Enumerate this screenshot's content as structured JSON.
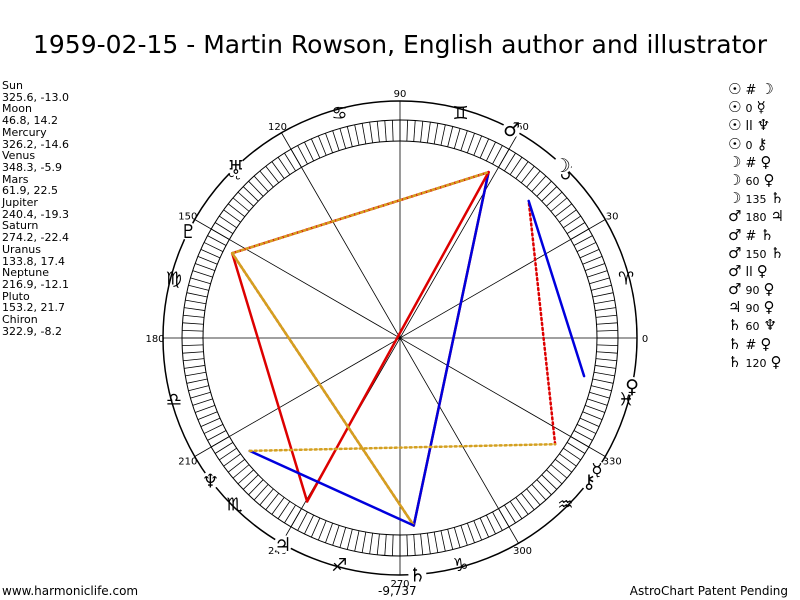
{
  "title": "1959-02-15 - Martin Rowson, English author and illustrator",
  "planets": [
    {
      "name": "Sun",
      "coords": "325.6, -13.0",
      "lon": 325.6,
      "glyph": "☉"
    },
    {
      "name": "Moon",
      "coords": "46.8, 14.2",
      "lon": 46.8,
      "glyph": "☽"
    },
    {
      "name": "Mercury",
      "coords": "326.2, -14.6",
      "lon": 326.2,
      "glyph": "☿"
    },
    {
      "name": "Venus",
      "coords": "348.3, -5.9",
      "lon": 348.3,
      "glyph": "♀"
    },
    {
      "name": "Mars",
      "coords": "61.9, 22.5",
      "lon": 61.9,
      "glyph": "♂"
    },
    {
      "name": "Jupiter",
      "coords": "240.4, -19.3",
      "lon": 240.4,
      "glyph": "♃"
    },
    {
      "name": "Saturn",
      "coords": "274.2, -22.4",
      "lon": 274.2,
      "glyph": "♄"
    },
    {
      "name": "Uranus",
      "coords": "133.8, 17.4",
      "lon": 133.8,
      "glyph": "♅"
    },
    {
      "name": "Neptune",
      "coords": "216.9, -12.1",
      "lon": 216.9,
      "glyph": "♆"
    },
    {
      "name": "Pluto",
      "coords": "153.2, 21.7",
      "lon": 153.2,
      "glyph": "♇"
    },
    {
      "name": "Chiron",
      "coords": "322.9, -8.2",
      "lon": 322.9,
      "glyph": "⚷"
    }
  ],
  "aspect_list": [
    {
      "p1": "☉",
      "sym": "#",
      "p2": "☽"
    },
    {
      "p1": "☉",
      "sym": "0",
      "p2": "☿"
    },
    {
      "p1": "☉",
      "sym": "ll",
      "p2": "♆"
    },
    {
      "p1": "☉",
      "sym": "0",
      "p2": "⚷"
    },
    {
      "p1": "☽",
      "sym": "#",
      "p2": "♀"
    },
    {
      "p1": "☽",
      "sym": "60",
      "p2": "♀"
    },
    {
      "p1": "☽",
      "sym": "135",
      "p2": "♄"
    },
    {
      "p1": "♂",
      "sym": "180",
      "p2": "♃"
    },
    {
      "p1": "♂",
      "sym": "#",
      "p2": "♄"
    },
    {
      "p1": "♂",
      "sym": "150",
      "p2": "♄"
    },
    {
      "p1": "♂",
      "sym": "ll",
      "p2": "♀"
    },
    {
      "p1": "♂",
      "sym": "90",
      "p2": "♀"
    },
    {
      "p1": "♃",
      "sym": "90",
      "p2": "♀"
    },
    {
      "p1": "♄",
      "sym": "60",
      "p2": "♆"
    },
    {
      "p1": "♄",
      "sym": "#",
      "p2": "♀"
    },
    {
      "p1": "♄",
      "sym": "120",
      "p2": "♀"
    }
  ],
  "zodiac_glyphs": [
    "♈",
    "♉",
    "♊",
    "♋",
    "♌",
    "♍",
    "♎",
    "♏",
    "♐",
    "♑",
    "♒",
    "♓"
  ],
  "degree_labels": [
    "0",
    "30",
    "60",
    "90",
    "120",
    "150",
    "180",
    "210",
    "240",
    "270",
    "300",
    "330"
  ],
  "aspect_lines": [
    {
      "from": "Sun",
      "to": "Moon",
      "color": "#dd0000",
      "style": "dotted"
    },
    {
      "from": "Mars",
      "to": "Saturn",
      "color": "#dd0000",
      "style": "solid"
    },
    {
      "from": "Mars",
      "to": "Saturn",
      "color": "#0000dd",
      "style": "solid"
    },
    {
      "from": "Mars",
      "to": "Pluto",
      "color": "#dd0000",
      "style": "solid"
    },
    {
      "from": "Mars",
      "to": "Jupiter",
      "color": "#dd0000",
      "style": "solid"
    },
    {
      "from": "Moon",
      "to": "Venus",
      "color": "#0000dd",
      "style": "solid"
    },
    {
      "from": "Jupiter",
      "to": "Pluto",
      "color": "#dd0000",
      "style": "solid"
    },
    {
      "from": "Saturn",
      "to": "Pluto",
      "color": "#dd0000",
      "style": "dotted"
    },
    {
      "from": "Saturn",
      "to": "Pluto",
      "color": "#d4a020",
      "style": "solid"
    },
    {
      "from": "Saturn",
      "to": "Neptune",
      "color": "#0000dd",
      "style": "solid"
    },
    {
      "from": "Neptune",
      "to": "Sun",
      "color": "#d4a020",
      "style": "dotted"
    },
    {
      "from": "Pluto",
      "to": "Mars",
      "color": "#d4a020",
      "style": "dotted"
    }
  ],
  "center_value": "-9,737",
  "footer_left": "www.harmoniclife.com",
  "footer_right": "AstroChart Patent Pending"
}
